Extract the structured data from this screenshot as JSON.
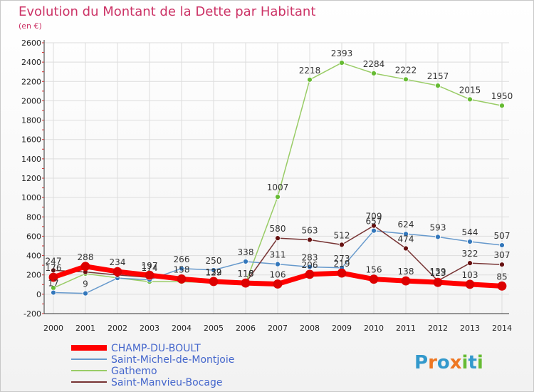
{
  "chart_data": {
    "type": "line",
    "title": "Evolution du Montant de la Dette par Habitant",
    "subtitle": "(en €)",
    "xlabel": "",
    "ylabel": "",
    "x": [
      "2000",
      "2001",
      "2002",
      "2003",
      "2004",
      "2005",
      "2006",
      "2007",
      "2008",
      "2009",
      "2010",
      "2011",
      "2012",
      "2013",
      "2014"
    ],
    "yticks": [
      -200,
      0,
      200,
      400,
      600,
      800,
      1000,
      1200,
      1400,
      1600,
      1800,
      2000,
      2200,
      2400,
      2600
    ],
    "ylim": [
      -200,
      2600
    ],
    "grid": true,
    "legend_position": "bottom-left",
    "series": [
      {
        "name": "Gathemo",
        "color": "#99cc66",
        "marker": "#66bb33",
        "width": 1.5,
        "values": [
          65,
          213,
          169,
          130,
          130,
          120,
          115,
          1007,
          2218,
          2393,
          2284,
          2222,
          2157,
          2015,
          1950
        ],
        "labels": [
          "",
          "",
          "",
          "",
          "",
          "",
          "",
          "1007",
          "2218",
          "2393",
          "2284",
          "2222",
          "2157",
          "2015",
          "1950"
        ]
      },
      {
        "name": "Saint-Michel-de-Montjoie",
        "color": "#6699cc",
        "marker": "#3377bb",
        "width": 1.5,
        "values": [
          17,
          9,
          167,
          150,
          266,
          250,
          338,
          311,
          283,
          273,
          657,
          624,
          593,
          544,
          507
        ],
        "labels": [
          "17",
          "9",
          "",
          "",
          "266",
          "250",
          "338",
          "311",
          "283",
          "273",
          "657",
          "624",
          "593",
          "544",
          "507"
        ]
      },
      {
        "name": "Saint-Manvieu-Bocage",
        "color": "#773333",
        "marker": "#661111",
        "width": 1.5,
        "values": [
          247,
          230,
          200,
          174,
          150,
          129,
          118,
          580,
          563,
          512,
          709,
          474,
          139,
          322,
          307
        ],
        "labels": [
          "247",
          "",
          "",
          "174",
          "",
          "129",
          "118",
          "580",
          "563",
          "512",
          "709",
          "474",
          "139",
          "322",
          "307"
        ]
      },
      {
        "name": "CHAMP-DU-BOULT",
        "color": "#ff0000",
        "marker": "#dd0000",
        "width": 7,
        "values": [
          176,
          288,
          234,
          197,
          158,
          132,
          116,
          106,
          206,
          219,
          156,
          138,
          123,
          103,
          85
        ],
        "labels": [
          "176",
          "288",
          "234",
          "197",
          "158",
          "132",
          "116",
          "106",
          "206",
          "219",
          "156",
          "138",
          "123",
          "103",
          "85"
        ]
      }
    ]
  },
  "legend": {
    "items": [
      {
        "label": "CHAMP-DU-BOULT",
        "color": "#ff0000",
        "thick": true
      },
      {
        "label": "Saint-Michel-de-Montjoie",
        "color": "#6699cc",
        "thick": false
      },
      {
        "label": "Gathemo",
        "color": "#99cc66",
        "thick": false
      },
      {
        "label": "Saint-Manvieu-Bocage",
        "color": "#773333",
        "thick": false
      }
    ]
  },
  "logo": {
    "text": "Proxiti",
    "colors": [
      "#3399cc",
      "#ee7722",
      "#3399cc",
      "#ee7722",
      "#66bb33",
      "#3399cc",
      "#66bb33"
    ]
  }
}
